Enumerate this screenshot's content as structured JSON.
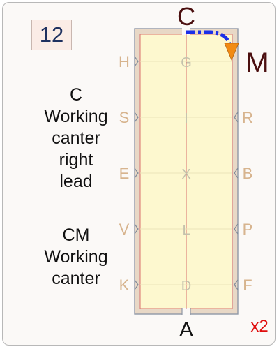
{
  "badge_number": "12",
  "instructions": [
    {
      "lines": [
        "C",
        "Working",
        "canter",
        "right",
        "lead"
      ]
    },
    {
      "lines": [
        "CM",
        "Working",
        "canter"
      ]
    }
  ],
  "letters": {
    "top": "C",
    "bottom": "A",
    "left": [
      "H",
      "S",
      "E",
      "V",
      "K"
    ],
    "right": [
      "M",
      "R",
      "B",
      "P",
      "F"
    ],
    "center": [
      "G",
      "I",
      "X",
      "L",
      "D"
    ]
  },
  "multiplier": "x2",
  "colors": {
    "arena_fill": "#fdf8cf",
    "arena_wall": "#e8d8c6",
    "arena_border": "#7f8a99",
    "centerline": "#d9716d",
    "marker_letter": "#d7b48e",
    "end_letter": "#4b0f0f",
    "path": "#1a2fe8",
    "arrow": "#f28b13",
    "multiplier": "#e00d0d"
  }
}
